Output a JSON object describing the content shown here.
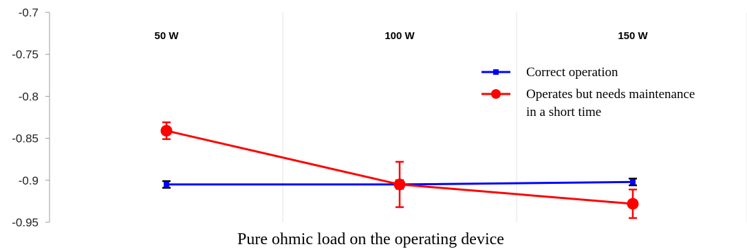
{
  "chart_data": {
    "type": "line",
    "categories": [
      "50 W",
      "100 W",
      "150 W"
    ],
    "xlabel": "Pure ohmic load on the operating device",
    "ylabel": "",
    "ylim": [
      -0.95,
      -0.7
    ],
    "yticks": [
      -0.7,
      -0.75,
      -0.8,
      -0.85,
      -0.9,
      -0.95
    ],
    "ytick_labels": [
      "-0.7",
      "-0.75",
      "-0.8",
      "-0.85",
      "-0.9",
      "-0.95"
    ],
    "grid": "vertical",
    "legend_position": "right",
    "series": [
      {
        "name": "Correct operation",
        "color": "#0000ff",
        "marker": "square",
        "values": [
          -0.905,
          -0.905,
          -0.902
        ],
        "error": [
          0.004,
          0.005,
          0.004
        ]
      },
      {
        "name": "Operates but needs maintenance in a short time",
        "name_lines": [
          "Operates but needs maintenance",
          "in a short time"
        ],
        "color": "#ff0000",
        "marker": "circle",
        "values": [
          -0.841,
          -0.905,
          -0.928
        ],
        "error": [
          0.01,
          0.027,
          0.017
        ]
      }
    ]
  }
}
